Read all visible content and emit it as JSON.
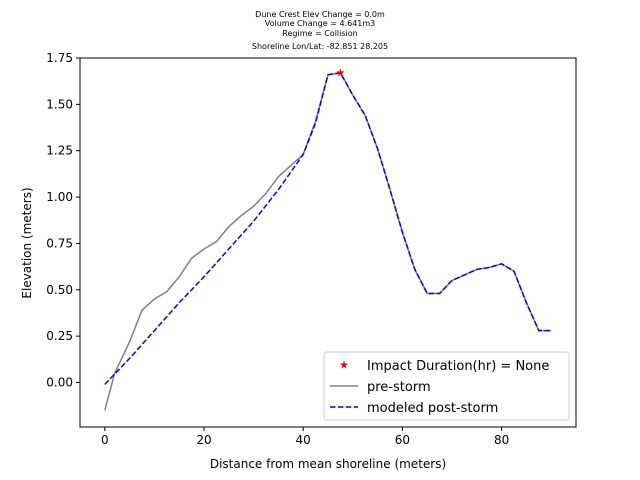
{
  "chart_data": {
    "type": "line",
    "title_lines": [
      "Dune Crest Elev Change = 0.0m",
      "Volume Change = 4.641m3",
      "Regime = Collision",
      "Shoreline Lon/Lat: -82.851 28.205"
    ],
    "xlabel": "Distance from mean shoreline (meters)",
    "ylabel": "Elevation (meters)",
    "xlim": [
      -5,
      95
    ],
    "ylim": [
      -0.24,
      1.75
    ],
    "x_ticks": [
      0,
      20,
      40,
      60,
      80
    ],
    "x_tick_labels": [
      "0",
      "20",
      "40",
      "60",
      "80"
    ],
    "y_ticks": [
      0.0,
      0.25,
      0.5,
      0.75,
      1.0,
      1.25,
      1.5,
      1.75
    ],
    "y_tick_labels": [
      "0.00",
      "0.25",
      "0.50",
      "0.75",
      "1.00",
      "1.25",
      "1.50",
      "1.75"
    ],
    "legend_position": "lower-right",
    "series": [
      {
        "name": "pre-storm",
        "style": "solid",
        "color": "#808080",
        "x": [
          0,
          2,
          5,
          7.5,
          10,
          12.5,
          15,
          17.5,
          20,
          22.5,
          25,
          27.5,
          30,
          32.5,
          35,
          37.5,
          40,
          42.5,
          45,
          47.5,
          50,
          52.5,
          55,
          57.5,
          60,
          62.5,
          65,
          67.5,
          70,
          72.5,
          75,
          77.5,
          80,
          82.5,
          85,
          87.5,
          90
        ],
        "y": [
          -0.15,
          0.05,
          0.22,
          0.39,
          0.45,
          0.49,
          0.57,
          0.67,
          0.72,
          0.76,
          0.84,
          0.9,
          0.95,
          1.02,
          1.11,
          1.17,
          1.23,
          1.41,
          1.66,
          1.67,
          1.55,
          1.44,
          1.26,
          1.04,
          0.81,
          0.61,
          0.48,
          0.48,
          0.55,
          0.58,
          0.61,
          0.62,
          0.64,
          0.6,
          0.43,
          0.28,
          0.28
        ]
      },
      {
        "name": "modeled post-storm",
        "style": "dashed",
        "color": "#0000ff",
        "x": [
          0,
          5,
          10,
          15,
          20,
          25,
          30,
          35,
          40,
          42.5,
          45,
          47.5,
          50,
          52.5,
          55,
          57.5,
          60,
          62.5,
          65,
          67.5,
          70,
          72.5,
          75,
          77.5,
          80,
          82.5,
          85,
          87.5,
          90
        ],
        "y": [
          -0.01,
          0.13,
          0.28,
          0.43,
          0.57,
          0.72,
          0.87,
          1.04,
          1.23,
          1.4,
          1.66,
          1.67,
          1.55,
          1.44,
          1.26,
          1.04,
          0.81,
          0.61,
          0.48,
          0.48,
          0.55,
          0.58,
          0.61,
          0.62,
          0.64,
          0.6,
          0.43,
          0.28,
          0.28
        ]
      }
    ],
    "markers": [
      {
        "name": "Impact Duration(hr) = None",
        "x": 47.5,
        "y": 1.67,
        "symbol": "star",
        "color": "#ff0000"
      }
    ]
  }
}
